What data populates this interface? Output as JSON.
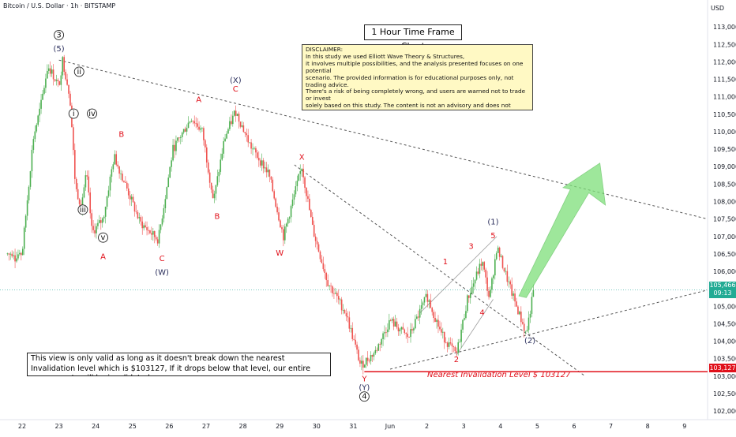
{
  "header": {
    "symbol": "Bitcoin / U.S. Dollar · 1h · BITSTAMP",
    "currency": "USD"
  },
  "annotations": {
    "timeframe_title": "1 Hour Time Frame Chart",
    "disclaimer": "DISCLAIMER:\nIn this study we used Elliott Wave Theory & Structures,\nit involves multiple possibilities, and the analysis presented focuses on one potential\nscenario. The provided information is for educational purposes only, not trading advice.\nThere's a risk of being completely wrong, and users are warned not to trade or invest\nsolely based on this study. The content is not an advisory and does not guarantee\nprofits, We are not responsible for any kind of profits and losses; individuals should\nconsult a financial advisor before making any trading or investment decisions.",
    "validity_note": "This view is only valid as long as it doesn't break down the nearest Invalidation level which is $103127, If it drops below that level, our entire wave counts will be invalidated.",
    "invalidation_caption": "Nearest Invalidation Level  $ 103127"
  },
  "price_tags": {
    "last_price": "105,466",
    "countdown": "09:13",
    "invalidation_price": "103,127"
  },
  "colors": {
    "up": "#26a69a",
    "up_bright": "#4caf50",
    "down": "#ef5350",
    "invalidation": "#e0101a",
    "wave_red": "#e0101a",
    "wave_navy": "#2a2e5c",
    "arrow": "#7ee07a",
    "last_price_tag": "#22ab94"
  },
  "chart_data": {
    "type": "candlestick",
    "title": "1 Hour Time Frame Chart",
    "xlabel": "",
    "ylabel": "USD",
    "grid": false,
    "ylim": [
      101800,
      113500
    ],
    "y_ticks": [
      "102,000",
      "102,500",
      "103,000",
      "103,500",
      "104,000",
      "104,500",
      "105,000",
      "105,500",
      "106,000",
      "106,500",
      "107,000",
      "107,500",
      "108,000",
      "108,500",
      "109,000",
      "109,500",
      "110,000",
      "110,500",
      "111,000",
      "111,500",
      "112,000",
      "112,500",
      "113,000"
    ],
    "x_ticks": [
      "22",
      "23",
      "24",
      "25",
      "26",
      "27",
      "28",
      "29",
      "30",
      "31",
      "Jun",
      "2",
      "3",
      "4",
      "5",
      "6",
      "7",
      "8",
      "9"
    ],
    "price_path": [
      [
        "22",
        106500
      ],
      [
        "22.3",
        109800
      ],
      [
        "22.5",
        110700
      ],
      [
        "22.7",
        111900
      ],
      [
        "23",
        111300
      ],
      [
        "23.1",
        112050
      ],
      [
        "23.3",
        111000
      ],
      [
        "23.45",
        108400
      ],
      [
        "23.6",
        107900
      ],
      [
        "23.75",
        108800
      ],
      [
        "23.9",
        107100
      ],
      [
        "24.2",
        107500
      ],
      [
        "24.5",
        109300
      ],
      [
        "24.8",
        108500
      ],
      [
        "25.2",
        107400
      ],
      [
        "25.7",
        106900
      ],
      [
        "26.1",
        109500
      ],
      [
        "26.6",
        110400
      ],
      [
        "26.9",
        110000
      ],
      [
        "27.2",
        108000
      ],
      [
        "27.5",
        109800
      ],
      [
        "27.8",
        110600
      ],
      [
        "28.2",
        109600
      ],
      [
        "28.7",
        108800
      ],
      [
        "29.1",
        107000
      ],
      [
        "29.6",
        109000
      ],
      [
        "29.9",
        107200
      ],
      [
        "30.3",
        105700
      ],
      [
        "30.8",
        104800
      ],
      [
        "31.2",
        103300
      ],
      [
        "31.6",
        103700
      ],
      [
        "Jun 1",
        104600
      ],
      [
        "1.5",
        104100
      ],
      [
        "2",
        105300
      ],
      [
        "2.4",
        104200
      ],
      [
        "2.8",
        103600
      ],
      [
        "3.1",
        105200
      ],
      [
        "3.5",
        106300
      ],
      [
        "3.7",
        105200
      ],
      [
        "3.9",
        106700
      ],
      [
        "4.3",
        105400
      ],
      [
        "4.7",
        104200
      ],
      [
        "4.9",
        105466
      ]
    ],
    "series": [
      {
        "name": "Nearest Invalidation Level",
        "values": [
          103127
        ]
      }
    ],
    "last_price": 105466,
    "invalidation_level": 103127,
    "wave_labels": [
      {
        "text": "3",
        "style": "circled",
        "x": "23",
        "y": 112700
      },
      {
        "text": "(5)",
        "x": "23",
        "y": 112300
      },
      {
        "text": "ii",
        "style": "circled",
        "x": "23.55",
        "y": 111650
      },
      {
        "text": "i",
        "style": "circled",
        "x": "23.4",
        "y": 110450
      },
      {
        "text": "iv",
        "style": "circled",
        "x": "23.9",
        "y": 110450
      },
      {
        "text": "iii",
        "style": "circled",
        "x": "23.65",
        "y": 107700
      },
      {
        "text": "v",
        "style": "circled",
        "x": "24.2",
        "y": 106900
      },
      {
        "text": "A",
        "x": "24.2",
        "y": 106350
      },
      {
        "text": "B",
        "x": "24.7",
        "y": 109850
      },
      {
        "text": "C",
        "x": "25.8",
        "y": 106300
      },
      {
        "text": "(W)",
        "x": "25.8",
        "y": 105900
      },
      {
        "text": "A",
        "x": "26.8",
        "y": 110850
      },
      {
        "text": "(X)",
        "x": "27.8",
        "y": 111400
      },
      {
        "text": "C",
        "x": "27.8",
        "y": 111150
      },
      {
        "text": "B",
        "x": "27.3",
        "y": 107500
      },
      {
        "text": "W",
        "x": "29.0",
        "y": 106450
      },
      {
        "text": "X",
        "x": "29.6",
        "y": 109200
      },
      {
        "text": "Y",
        "x": "31.3",
        "y": 102850
      },
      {
        "text": "(Y)",
        "x": "31.3",
        "y": 102600
      },
      {
        "text": "4",
        "style": "circled",
        "x": "31.3",
        "y": 102350
      },
      {
        "text": "1",
        "x": "2.5",
        "y": 106200
      },
      {
        "text": "2",
        "x": "2.8",
        "y": 103400
      },
      {
        "text": "3",
        "x": "3.2",
        "y": 106650
      },
      {
        "text": "4",
        "x": "3.5",
        "y": 104750
      },
      {
        "text": "5",
        "x": "3.8",
        "y": 106950
      },
      {
        "text": "(1)",
        "x": "3.8",
        "y": 107350
      },
      {
        "text": "(2)",
        "x": "4.8",
        "y": 103950
      }
    ]
  }
}
